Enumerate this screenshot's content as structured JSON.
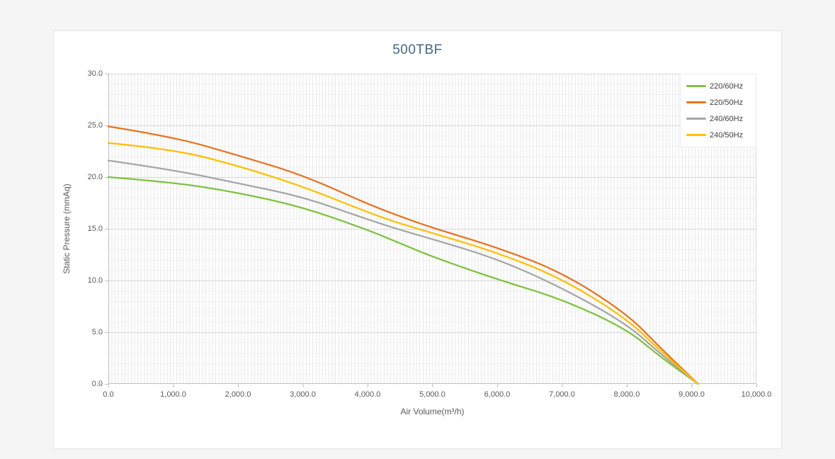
{
  "page": {
    "colors": {
      "page_bg": "#f5f5f5",
      "card_bg": "#ffffff",
      "card_border": "#e5e5e5",
      "title_text": "#476781",
      "tick_label": "#595959",
      "axis_line": "#bfbfbf",
      "grid_major": "#d9d9d9",
      "legend_text": "#404040"
    }
  },
  "chart_data": {
    "type": "line",
    "title": "500TBF",
    "xlabel": "Air Volume(m³/h)",
    "ylabel": "Static Pressure (mmAq)",
    "xlim": [
      0,
      10000
    ],
    "ylim": [
      0,
      30
    ],
    "grid": "major horizontal lines every 5 mmAq, dense minor vertical stripes",
    "legend_position": "top-right",
    "x_ticks": {
      "values": [
        0,
        1000,
        2000,
        3000,
        4000,
        5000,
        6000,
        7000,
        8000,
        9000,
        10000
      ],
      "labels": [
        "0.0",
        "1,000.0",
        "2,000.0",
        "3,000.0",
        "4,000.0",
        "5,000.0",
        "6,000.0",
        "7,000.0",
        "8,000.0",
        "9,000.0",
        "10,000.0"
      ]
    },
    "y_ticks": {
      "values": [
        0,
        5,
        10,
        15,
        20,
        25,
        30
      ],
      "labels": [
        "0.0",
        "5.0",
        "10.0",
        "15.0",
        "20.0",
        "25.0",
        "30.0"
      ]
    },
    "series": [
      {
        "name": "220/60Hz",
        "color": "#7FC241",
        "x": [
          0,
          1000,
          2000,
          3000,
          4000,
          4500,
          5000,
          6000,
          7000,
          8000,
          8500,
          9100
        ],
        "y": [
          20.0,
          19.5,
          18.5,
          17.1,
          14.9,
          13.6,
          12.3,
          10.1,
          8.2,
          5.3,
          2.7,
          0.0
        ]
      },
      {
        "name": "220/50Hz",
        "color": "#E8731F",
        "x": [
          0,
          1000,
          2000,
          3000,
          4000,
          4500,
          5000,
          6000,
          7000,
          8000,
          8500,
          9100
        ],
        "y": [
          24.9,
          23.9,
          22.1,
          20.2,
          17.4,
          16.2,
          15.1,
          13.2,
          10.8,
          6.8,
          3.6,
          0.0
        ]
      },
      {
        "name": "240/60Hz",
        "color": "#A6A6A6",
        "x": [
          0,
          1000,
          2000,
          3000,
          4000,
          4500,
          5000,
          6000,
          7000,
          8000,
          8500,
          9100
        ],
        "y": [
          21.6,
          20.7,
          19.4,
          18.1,
          15.9,
          14.9,
          14.0,
          12.1,
          9.3,
          5.8,
          3.0,
          0.0
        ]
      },
      {
        "name": "240/50Hz",
        "color": "#FFBF00",
        "x": [
          0,
          1000,
          2000,
          3000,
          4000,
          4500,
          5000,
          6000,
          7000,
          8000,
          8500,
          9100
        ],
        "y": [
          23.3,
          22.7,
          21.1,
          19.1,
          16.6,
          15.5,
          14.6,
          12.7,
          10.2,
          6.3,
          3.3,
          0.0
        ]
      }
    ]
  }
}
